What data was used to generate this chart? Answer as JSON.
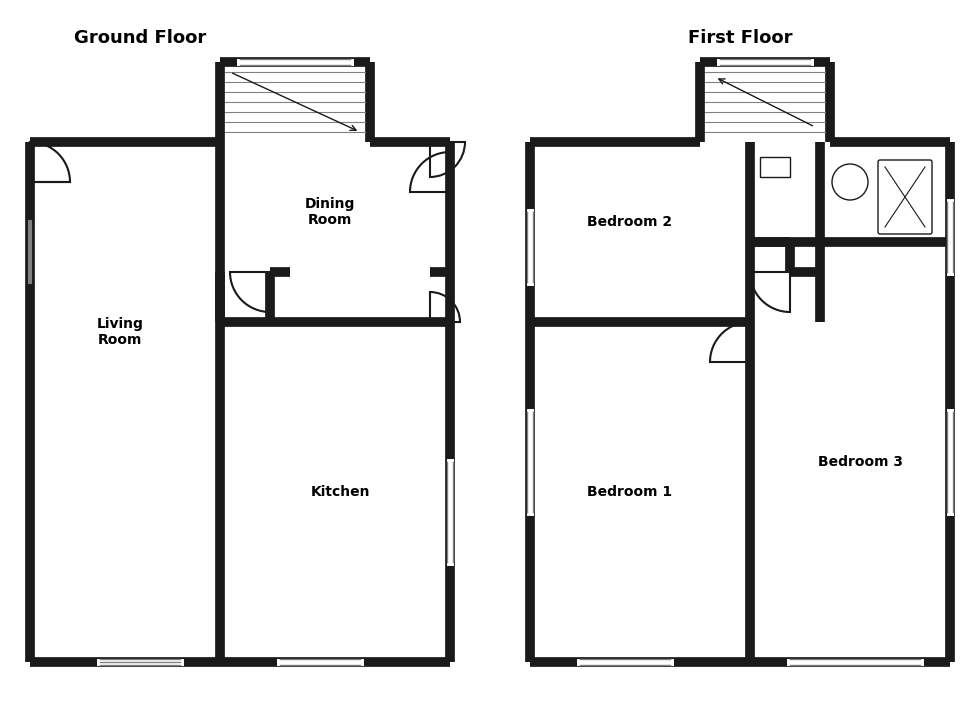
{
  "title_ground": "Ground Floor",
  "title_first": "First Floor",
  "bg_color": "#ffffff",
  "wall_color": "#1a1a1a",
  "wall_lw": 7,
  "thin_lw": 1.5,
  "room_labels": {
    "living_room": "Living\nRoom",
    "dining_room": "Dining\nRoom",
    "kitchen": "Kitchen",
    "bedroom1": "Bedroom 1",
    "bedroom2": "Bedroom 2",
    "bedroom3": "Bedroom 3"
  }
}
